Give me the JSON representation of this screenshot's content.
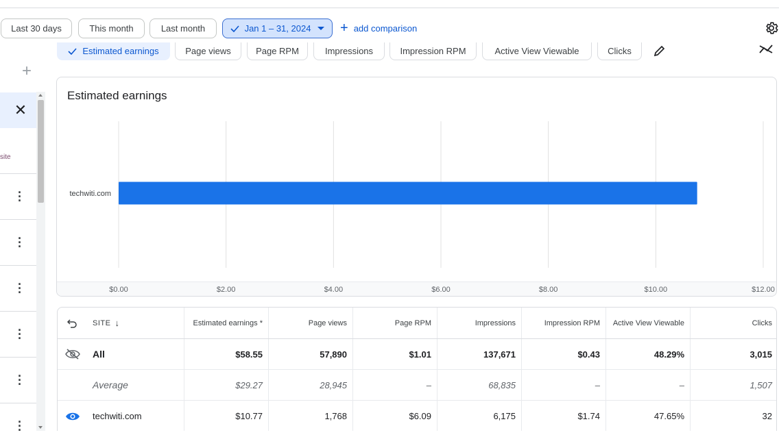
{
  "toolbar": {
    "ranges": [
      "Last 30 days",
      "This month",
      "Last month"
    ],
    "selected_range": "Jan 1 – 31, 2024",
    "add_comparison": "add comparison"
  },
  "metrics": {
    "chips": [
      "Estimated earnings",
      "Page views",
      "Page RPM",
      "Impressions",
      "Impression RPM",
      "Active View Viewable",
      "Clicks"
    ],
    "selected": "Estimated earnings"
  },
  "sidebar": {
    "partial_label": "site"
  },
  "chart_data": {
    "type": "bar",
    "orientation": "horizontal",
    "title": "Estimated earnings",
    "categories": [
      "techwiti.com"
    ],
    "values": [
      10.77
    ],
    "xlim": [
      0,
      12
    ],
    "x_ticks": [
      "$0.00",
      "$2.00",
      "$4.00",
      "$6.00",
      "$8.00",
      "$10.00",
      "$12.00"
    ],
    "color": "#1a73e8",
    "grid": true
  },
  "table": {
    "site_header": "SITE",
    "headers": [
      "Estimated earnings *",
      "Page views",
      "Page RPM",
      "Impressions",
      "Impression RPM",
      "Active View Viewable",
      "Clicks"
    ],
    "rows": [
      {
        "label": "All",
        "values": [
          "$58.55",
          "57,890",
          "$1.01",
          "137,671",
          "$0.43",
          "48.29%",
          "3,015"
        ]
      },
      {
        "label": "Average",
        "values": [
          "$29.27",
          "28,945",
          "–",
          "68,835",
          "–",
          "–",
          "1,507"
        ]
      },
      {
        "label": "techwiti.com",
        "values": [
          "$10.77",
          "1,768",
          "$6.09",
          "6,175",
          "$1.74",
          "47.65%",
          "32"
        ]
      }
    ]
  },
  "colors": {
    "accent": "#0b57d0",
    "bar": "#1a73e8",
    "selected_bg": "#d3e3fd"
  }
}
